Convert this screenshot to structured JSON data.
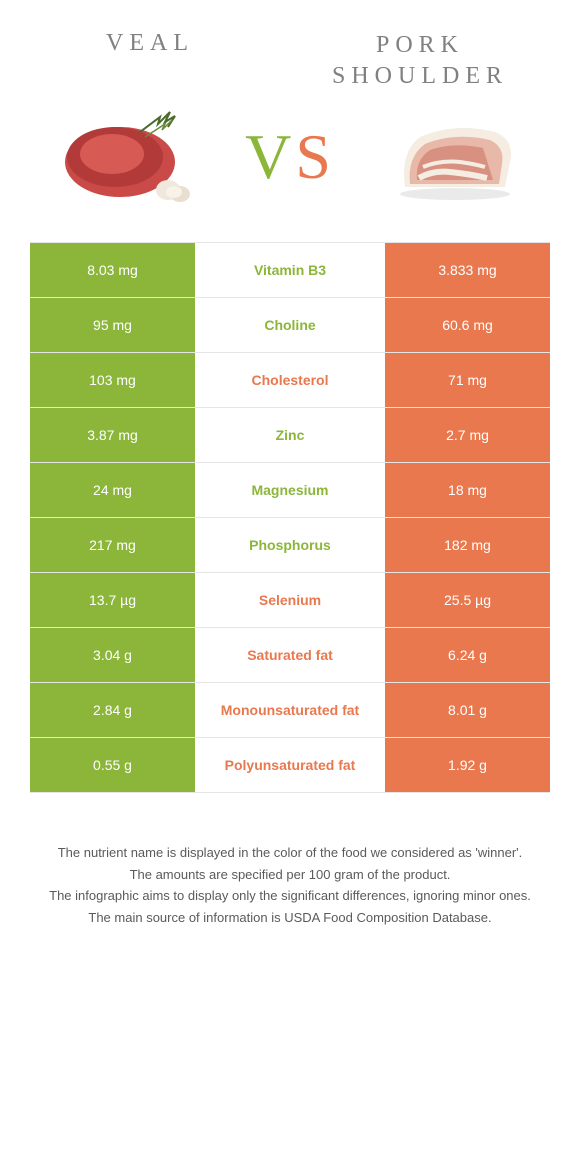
{
  "colors": {
    "green": "#8bb63a",
    "orange": "#e9784e",
    "title_gray": "#808080",
    "border": "#e5e5e5",
    "footer_text": "#5a5a5a",
    "white": "#ffffff"
  },
  "food_left": {
    "name": "VEAL",
    "color_key": "green"
  },
  "food_right": {
    "name": "PORK SHOULDER",
    "color_key": "orange"
  },
  "vs_label": {
    "v": "V",
    "s": "S"
  },
  "rows": [
    {
      "left": "8.03 mg",
      "label": "Vitamin B3",
      "right": "3.833 mg",
      "winner": "green"
    },
    {
      "left": "95 mg",
      "label": "Choline",
      "right": "60.6 mg",
      "winner": "green"
    },
    {
      "left": "103 mg",
      "label": "Cholesterol",
      "right": "71 mg",
      "winner": "orange"
    },
    {
      "left": "3.87 mg",
      "label": "Zinc",
      "right": "2.7 mg",
      "winner": "green"
    },
    {
      "left": "24 mg",
      "label": "Magnesium",
      "right": "18 mg",
      "winner": "green"
    },
    {
      "left": "217 mg",
      "label": "Phosphorus",
      "right": "182 mg",
      "winner": "green"
    },
    {
      "left": "13.7 µg",
      "label": "Selenium",
      "right": "25.5 µg",
      "winner": "orange"
    },
    {
      "left": "3.04 g",
      "label": "Saturated fat",
      "right": "6.24 g",
      "winner": "orange"
    },
    {
      "left": "2.84 g",
      "label": "Monounsaturated fat",
      "right": "8.01 g",
      "winner": "orange"
    },
    {
      "left": "0.55 g",
      "label": "Polyunsaturated fat",
      "right": "1.92 g",
      "winner": "orange"
    }
  ],
  "footer": {
    "line1": "The nutrient name is displayed in the color of the food we considered as 'winner'.",
    "line2": "The amounts are specified per 100 gram of the product.",
    "line3": "The infographic aims to display only the significant differences, ignoring minor ones.",
    "line4": "The main source of information is USDA Food Composition Database."
  }
}
